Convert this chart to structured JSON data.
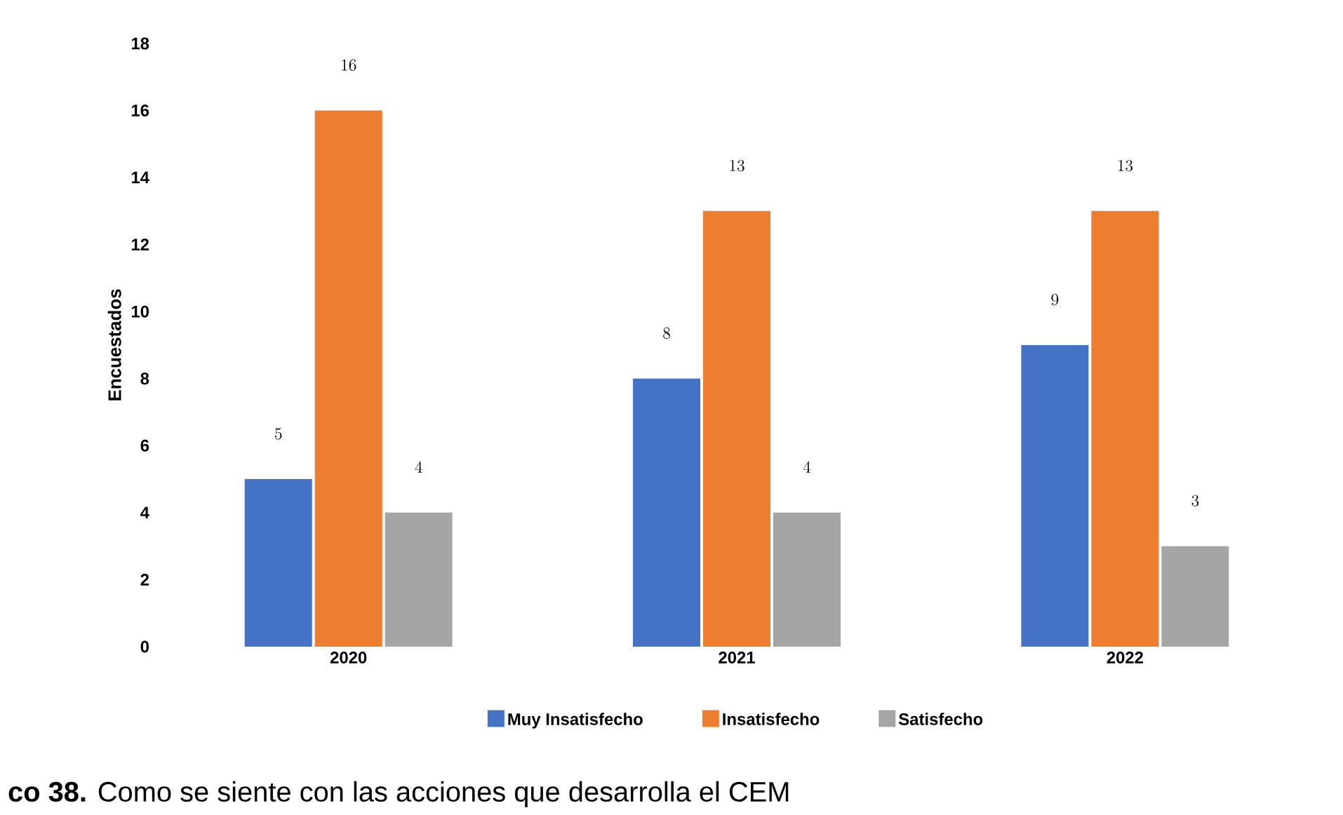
{
  "chart_data": {
    "type": "bar",
    "categories": [
      "2020",
      "2021",
      "2022"
    ],
    "ylabel": "Encuestados",
    "series": [
      {
        "name": "Muy Insatisfecho",
        "color": "#4472c4",
        "values": [
          5,
          8,
          9
        ]
      },
      {
        "name": "Insatisfecho",
        "color": "#ed7d31",
        "values": [
          16,
          13,
          13
        ]
      },
      {
        "name": "Satisfecho",
        "color": "#a5a5a5",
        "values": [
          4,
          4,
          3
        ]
      }
    ],
    "ylim": [
      0,
      18
    ],
    "yticks": [
      0,
      2,
      4,
      6,
      8,
      10,
      12,
      14,
      16,
      18
    ],
    "data_labels": true,
    "legend": "bottom",
    "annotations": [
      "**co 38.** Como se siente con las acciones que desarrolla el CEM"
    ]
  }
}
